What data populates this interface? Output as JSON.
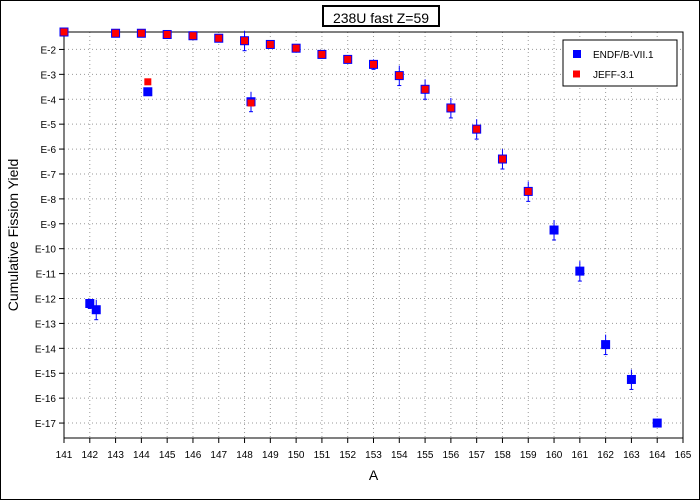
{
  "chart_data": {
    "type": "scatter",
    "title": "238U fast Z=59",
    "xlabel": "A",
    "ylabel": "Cumulative Fission Yield",
    "xlim": [
      141,
      165
    ],
    "ylim_exponent": [
      -17.6,
      -1.3
    ],
    "yscale": "log",
    "x_ticks": [
      "141",
      "142",
      "143",
      "144",
      "145",
      "146",
      "147",
      "148",
      "149",
      "150",
      "151",
      "152",
      "153",
      "154",
      "155",
      "156",
      "157",
      "158",
      "159",
      "160",
      "161",
      "162",
      "163",
      "164",
      "165"
    ],
    "y_ticks": [
      {
        "label": "E-2",
        "exp": -2
      },
      {
        "label": "E-3",
        "exp": -3
      },
      {
        "label": "E-4",
        "exp": -4
      },
      {
        "label": "E-5",
        "exp": -5
      },
      {
        "label": "E-6",
        "exp": -6
      },
      {
        "label": "E-7",
        "exp": -7
      },
      {
        "label": "E-8",
        "exp": -8
      },
      {
        "label": "E-9",
        "exp": -9
      },
      {
        "label": "E-10",
        "exp": -10
      },
      {
        "label": "E-11",
        "exp": -11
      },
      {
        "label": "E-12",
        "exp": -12
      },
      {
        "label": "E-13",
        "exp": -13
      },
      {
        "label": "E-14",
        "exp": -14
      },
      {
        "label": "E-15",
        "exp": -15
      },
      {
        "label": "E-16",
        "exp": -16
      },
      {
        "label": "E-17",
        "exp": -17
      }
    ],
    "grid": true,
    "legend_position": "top-right",
    "series": [
      {
        "name": "ENDF/B-VII.1",
        "color": "#0000ff",
        "marker": "square-large",
        "points": [
          {
            "x": 141.0,
            "y": -1.3
          },
          {
            "x": 142.0,
            "y": -12.2,
            "err": 0.2
          },
          {
            "x": 142.25,
            "y": -12.45,
            "err": 0.4
          },
          {
            "x": 143.0,
            "y": -1.35
          },
          {
            "x": 144.0,
            "y": -1.35
          },
          {
            "x": 144.25,
            "y": -3.7
          },
          {
            "x": 145.0,
            "y": -1.4
          },
          {
            "x": 146.0,
            "y": -1.45
          },
          {
            "x": 147.0,
            "y": -1.55
          },
          {
            "x": 148.0,
            "y": -1.65,
            "err": 0.4
          },
          {
            "x": 148.25,
            "y": -4.1,
            "err": 0.4
          },
          {
            "x": 149.0,
            "y": -1.8
          },
          {
            "x": 150.0,
            "y": -1.95
          },
          {
            "x": 151.0,
            "y": -2.2
          },
          {
            "x": 152.0,
            "y": -2.4
          },
          {
            "x": 153.0,
            "y": -2.6,
            "err": 0.2
          },
          {
            "x": 154.0,
            "y": -3.05,
            "err": 0.4
          },
          {
            "x": 155.0,
            "y": -3.6,
            "err": 0.4
          },
          {
            "x": 156.0,
            "y": -4.35,
            "err": 0.4
          },
          {
            "x": 157.0,
            "y": -5.2,
            "err": 0.4
          },
          {
            "x": 158.0,
            "y": -6.4,
            "err": 0.4
          },
          {
            "x": 159.0,
            "y": -7.7,
            "err": 0.4
          },
          {
            "x": 160.0,
            "y": -9.25,
            "err": 0.4
          },
          {
            "x": 161.0,
            "y": -10.9,
            "err": 0.4
          },
          {
            "x": 162.0,
            "y": -13.85,
            "err": 0.4
          },
          {
            "x": 163.0,
            "y": -15.25,
            "err": 0.4
          },
          {
            "x": 164.0,
            "y": -17.0
          }
        ]
      },
      {
        "name": "JEFF-3.1",
        "color": "#ff0000",
        "marker": "square-small",
        "points": [
          {
            "x": 141.0,
            "y": -1.3
          },
          {
            "x": 143.0,
            "y": -1.35
          },
          {
            "x": 144.0,
            "y": -1.35
          },
          {
            "x": 144.25,
            "y": -3.3
          },
          {
            "x": 145.0,
            "y": -1.4
          },
          {
            "x": 146.0,
            "y": -1.45
          },
          {
            "x": 147.0,
            "y": -1.55
          },
          {
            "x": 148.0,
            "y": -1.65
          },
          {
            "x": 148.25,
            "y": -4.15
          },
          {
            "x": 149.0,
            "y": -1.8
          },
          {
            "x": 150.0,
            "y": -1.95
          },
          {
            "x": 151.0,
            "y": -2.2
          },
          {
            "x": 152.0,
            "y": -2.4
          },
          {
            "x": 153.0,
            "y": -2.6
          },
          {
            "x": 154.0,
            "y": -3.05
          },
          {
            "x": 155.0,
            "y": -3.6
          },
          {
            "x": 156.0,
            "y": -4.35
          },
          {
            "x": 157.0,
            "y": -5.2
          },
          {
            "x": 158.0,
            "y": -6.4
          },
          {
            "x": 159.0,
            "y": -7.7
          }
        ]
      }
    ]
  }
}
